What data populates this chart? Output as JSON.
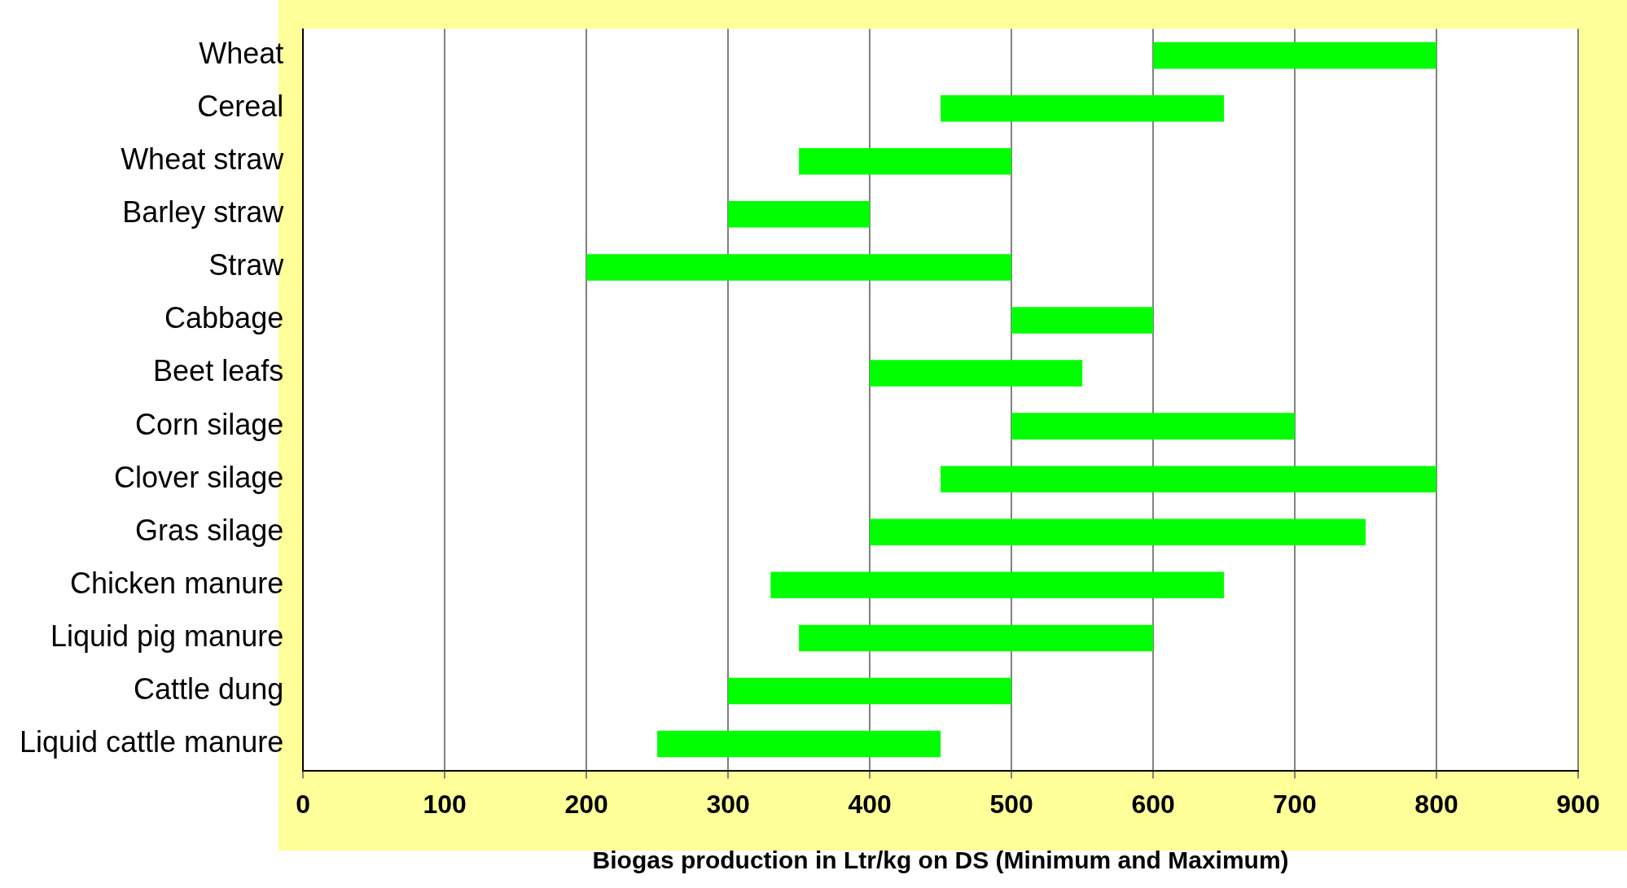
{
  "chart_data": {
    "type": "bar",
    "orientation": "horizontal",
    "xlabel": "Biogas production in Ltr/kg on DS (Minimum and Maximum)",
    "categories": [
      "Wheat",
      "Cereal",
      "Wheat straw",
      "Barley straw",
      "Straw",
      "Cabbage",
      "Beet leafs",
      "Corn silage",
      "Clover silage",
      "Gras silage",
      "Chicken manure",
      "Liquid pig manure",
      "Cattle dung",
      "Liquid cattle manure"
    ],
    "base": [
      600,
      450,
      350,
      300,
      200,
      500,
      400,
      500,
      450,
      400,
      330,
      350,
      300,
      250
    ],
    "values": [
      200,
      200,
      150,
      100,
      300,
      100,
      150,
      200,
      350,
      350,
      320,
      250,
      200,
      200
    ],
    "color": "#00ff00",
    "xlim": [
      0,
      900
    ],
    "xticks": [
      0,
      100,
      200,
      300,
      400,
      500,
      600,
      700,
      800,
      900
    ],
    "grid": "x",
    "legend": false
  }
}
